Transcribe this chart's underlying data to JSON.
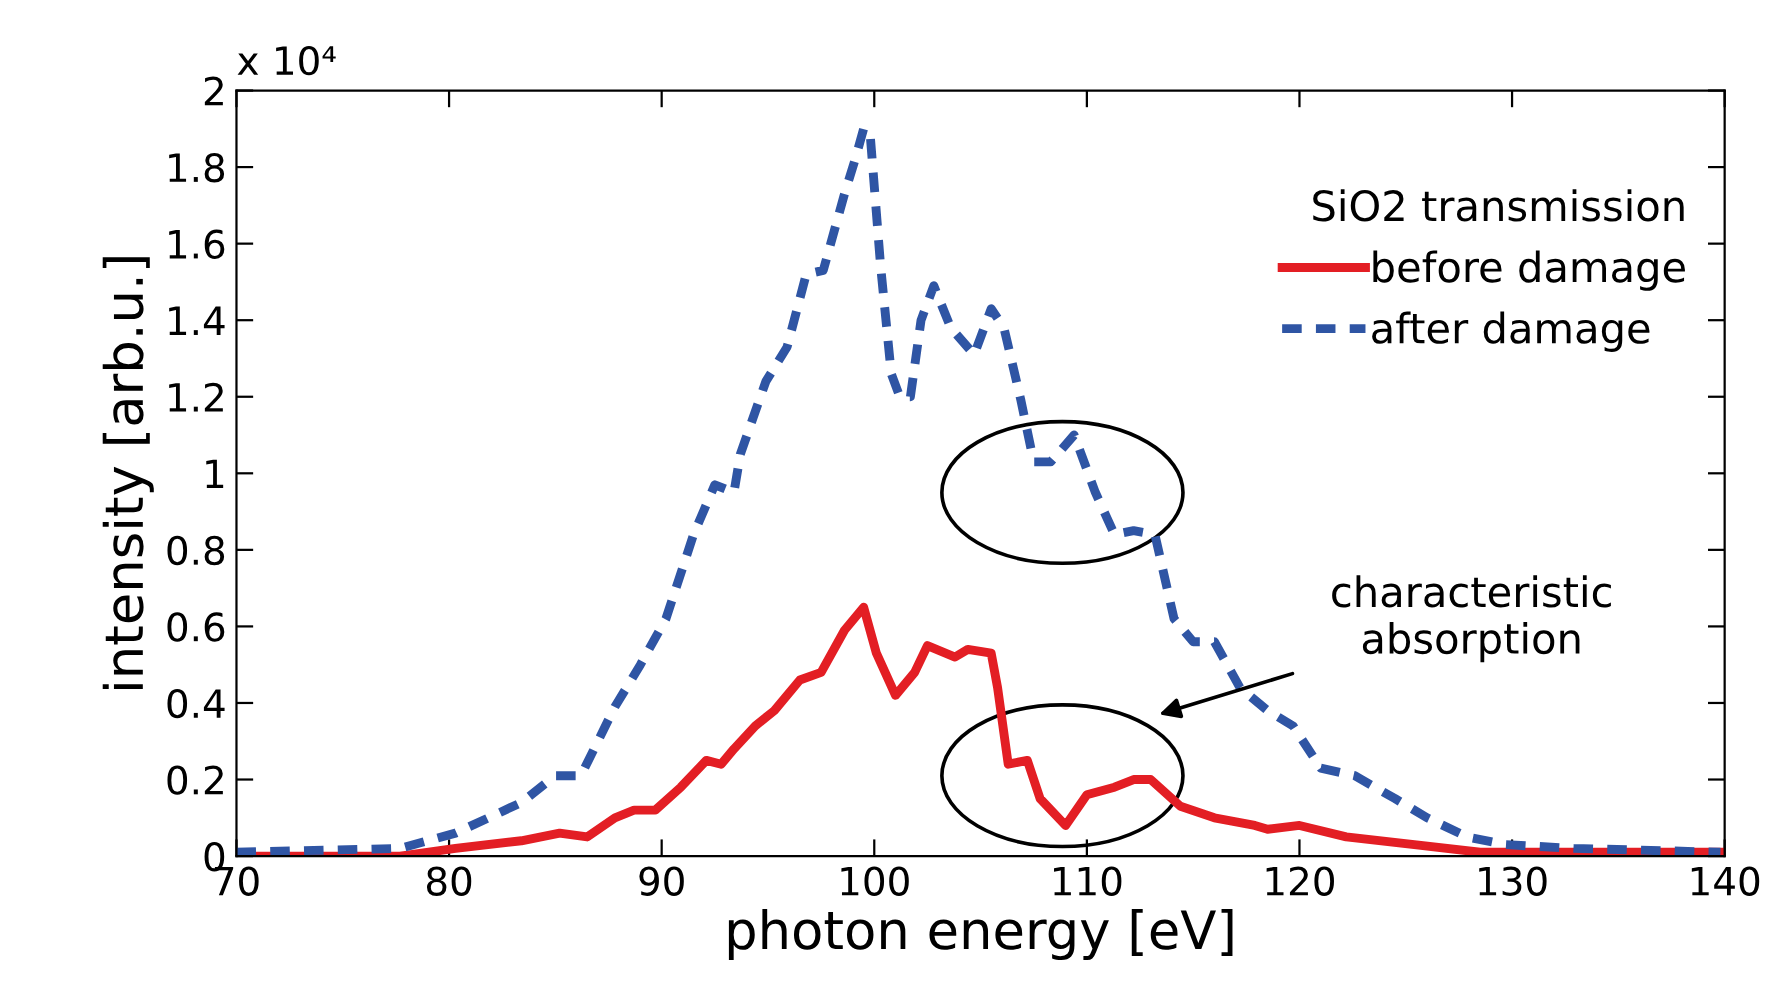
{
  "chart_data": {
    "type": "line",
    "xlabel": "photon energy [eV]",
    "ylabel": "intensity [arb.u.]",
    "legend_title": "SiO2 transmission",
    "legend": "top right",
    "grid": false,
    "xlim": [
      70,
      140
    ],
    "xticks": [
      70,
      80,
      90,
      100,
      110,
      120,
      130,
      140
    ],
    "ylim": [
      0,
      2
    ],
    "yticks": [
      0,
      0.2,
      0.4,
      0.6,
      0.8,
      1,
      1.2,
      1.4,
      1.6,
      1.8,
      2
    ],
    "annotations": [
      "x 10⁴",
      "characteristic\nabsorption"
    ],
    "series": [
      {
        "name": "before damage",
        "color": "#e31e24",
        "line_style": "solid",
        "x": [
          70,
          77.7,
          80.3,
          83.4,
          85.2,
          86.5,
          87.8,
          88.7,
          89.7,
          90.9,
          92.1,
          92.8,
          93.4,
          94.4,
          95.3,
          96.5,
          97.5,
          98.6,
          99.5,
          100.1,
          101,
          101.9,
          102.5,
          103.8,
          104.4,
          105.5,
          105.8,
          106.3,
          107.2,
          107.8,
          109,
          110,
          111.3,
          112.2,
          113,
          114.4,
          116,
          117.9,
          118.5,
          120,
          122.2,
          125.4,
          128.5,
          139.8
        ],
        "values": [
          0.0,
          0.0,
          0.02,
          0.04,
          0.06,
          0.05,
          0.1,
          0.12,
          0.12,
          0.18,
          0.25,
          0.24,
          0.28,
          0.34,
          0.38,
          0.46,
          0.48,
          0.59,
          0.65,
          0.53,
          0.42,
          0.48,
          0.55,
          0.52,
          0.54,
          0.53,
          0.44,
          0.24,
          0.25,
          0.15,
          0.08,
          0.16,
          0.18,
          0.2,
          0.2,
          0.13,
          0.1,
          0.08,
          0.07,
          0.08,
          0.05,
          0.03,
          0.01,
          0.01
        ]
      },
      {
        "name": "after damage",
        "color": "#2f55a4",
        "line_style": "dashed",
        "x": [
          70,
          77.7,
          80.3,
          83.4,
          85,
          86.2,
          87.8,
          89,
          90.2,
          91.5,
          92.5,
          93.4,
          93.7,
          94.9,
          95.9,
          96.8,
          97.6,
          98.6,
          99.1,
          99.5,
          99.8,
          100.3,
          100.8,
          101.2,
          101.7,
          102.2,
          102.8,
          103.6,
          104.7,
          105.5,
          106.1,
          106.9,
          107.5,
          108.3,
          109.4,
          110.4,
          111.3,
          112.2,
          113.2,
          114.1,
          115,
          116,
          117.2,
          118.5,
          119.7,
          121,
          122.6,
          124.5,
          126,
          127.9,
          129.7,
          132.9,
          139.8
        ],
        "values": [
          0.01,
          0.02,
          0.06,
          0.14,
          0.21,
          0.21,
          0.39,
          0.5,
          0.62,
          0.84,
          0.97,
          0.95,
          1.05,
          1.24,
          1.33,
          1.52,
          1.53,
          1.73,
          1.82,
          1.9,
          1.89,
          1.54,
          1.26,
          1.2,
          1.2,
          1.4,
          1.49,
          1.38,
          1.31,
          1.43,
          1.38,
          1.19,
          1.03,
          1.03,
          1.1,
          0.95,
          0.84,
          0.85,
          0.84,
          0.62,
          0.56,
          0.56,
          0.44,
          0.38,
          0.34,
          0.23,
          0.21,
          0.15,
          0.1,
          0.05,
          0.03,
          0.02,
          0.01
        ]
      }
    ]
  }
}
